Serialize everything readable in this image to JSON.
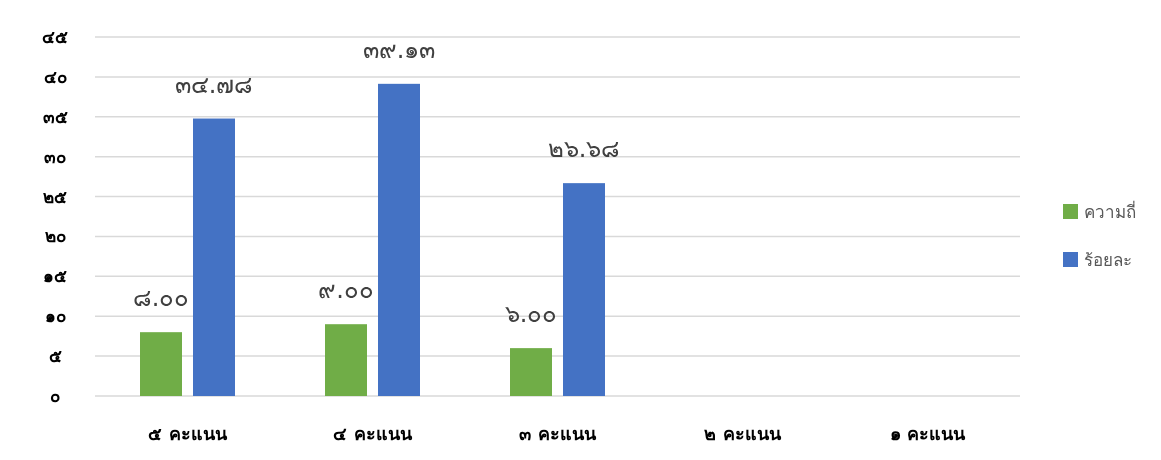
{
  "chart_data": {
    "type": "bar",
    "categories": [
      "๕ คะแนน",
      "๔ คะแนน",
      "๓ คะแนน",
      "๒ คะแนน",
      "๑ คะแนน"
    ],
    "series": [
      {
        "name": "ความถี่",
        "color": "#70ad47",
        "values": [
          8,
          9,
          6,
          null,
          null
        ],
        "value_labels": [
          "๘.๐๐",
          "๙.๐๐",
          "๖.๐๐",
          null,
          null
        ]
      },
      {
        "name": "ร้อยละ",
        "color": "#4472c4",
        "values": [
          34.78,
          39.13,
          26.68,
          null,
          null
        ],
        "value_labels": [
          "๓๔.๗๘",
          "๓๙.๑๓",
          "๒๖.๖๘",
          null,
          null
        ]
      }
    ],
    "ylim": [
      0,
      45
    ],
    "yticks": [
      {
        "value": 0,
        "label": "๐"
      },
      {
        "value": 5,
        "label": "๕"
      },
      {
        "value": 10,
        "label": "๑๐"
      },
      {
        "value": 15,
        "label": "๑๕"
      },
      {
        "value": 20,
        "label": "๒๐"
      },
      {
        "value": 25,
        "label": "๒๕"
      },
      {
        "value": 30,
        "label": "๓๐"
      },
      {
        "value": 35,
        "label": "๓๕"
      },
      {
        "value": 40,
        "label": "๔๐"
      },
      {
        "value": 45,
        "label": "๔๕"
      }
    ],
    "grid": "y",
    "legend": "right"
  }
}
